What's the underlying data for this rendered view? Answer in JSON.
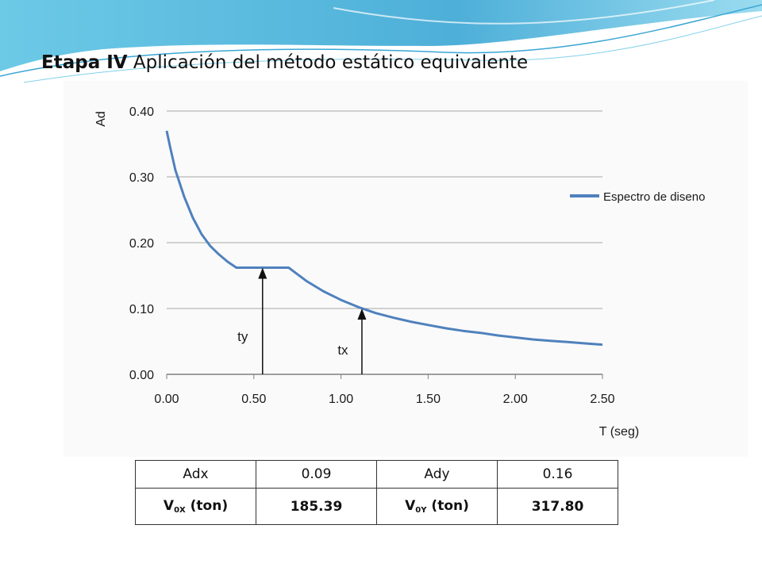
{
  "slide": {
    "title_bold": "Etapa IV",
    "title_rest": "Aplicación del método estático equivalente"
  },
  "chart_data": {
    "type": "line",
    "xlabel": "T (seg)",
    "ylabel": "Ad",
    "xlim": [
      0,
      2.5
    ],
    "ylim": [
      0,
      0.4
    ],
    "x_ticks": [
      "0.00",
      "0.50",
      "1.00",
      "1.50",
      "2.00",
      "2.50"
    ],
    "y_ticks": [
      "0.00",
      "0.10",
      "0.20",
      "0.30",
      "0.40"
    ],
    "grid": "horizontal",
    "legend_position": "right",
    "series": [
      {
        "name": "Espectro de diseno",
        "color": "#4f81bd",
        "x": [
          0,
          0.02,
          0.05,
          0.1,
          0.15,
          0.2,
          0.25,
          0.3,
          0.35,
          0.4,
          0.5,
          0.6,
          0.7,
          0.75,
          0.8,
          0.9,
          1.0,
          1.1,
          1.2,
          1.3,
          1.4,
          1.5,
          1.6,
          1.7,
          1.8,
          1.9,
          2.0,
          2.1,
          2.2,
          2.3,
          2.4,
          2.5
        ],
        "y": [
          0.37,
          0.345,
          0.31,
          0.27,
          0.238,
          0.213,
          0.195,
          0.182,
          0.171,
          0.162,
          0.162,
          0.162,
          0.162,
          0.152,
          0.142,
          0.126,
          0.113,
          0.102,
          0.093,
          0.086,
          0.08,
          0.075,
          0.07,
          0.066,
          0.063,
          0.059,
          0.056,
          0.053,
          0.051,
          0.049,
          0.047,
          0.045
        ]
      }
    ],
    "annotations": [
      {
        "label": "ty",
        "x": 0.55,
        "y_tip": 0.162
      },
      {
        "label": "tx",
        "x": 1.12,
        "y_tip": 0.1
      }
    ]
  },
  "table": {
    "row1": [
      "Adx",
      "0.09",
      "Ady",
      "0.16"
    ],
    "row2": [
      {
        "main": "V",
        "sub": "0X",
        "rest": " (ton)"
      },
      {
        "main": "185.39"
      },
      {
        "main": "V",
        "sub": "0Y",
        "rest": " (ton)"
      },
      {
        "main": "317.80"
      }
    ]
  },
  "colors": {
    "line": "#4f81bd",
    "deco": "#4ab6d8",
    "panel": "#fafafa"
  }
}
